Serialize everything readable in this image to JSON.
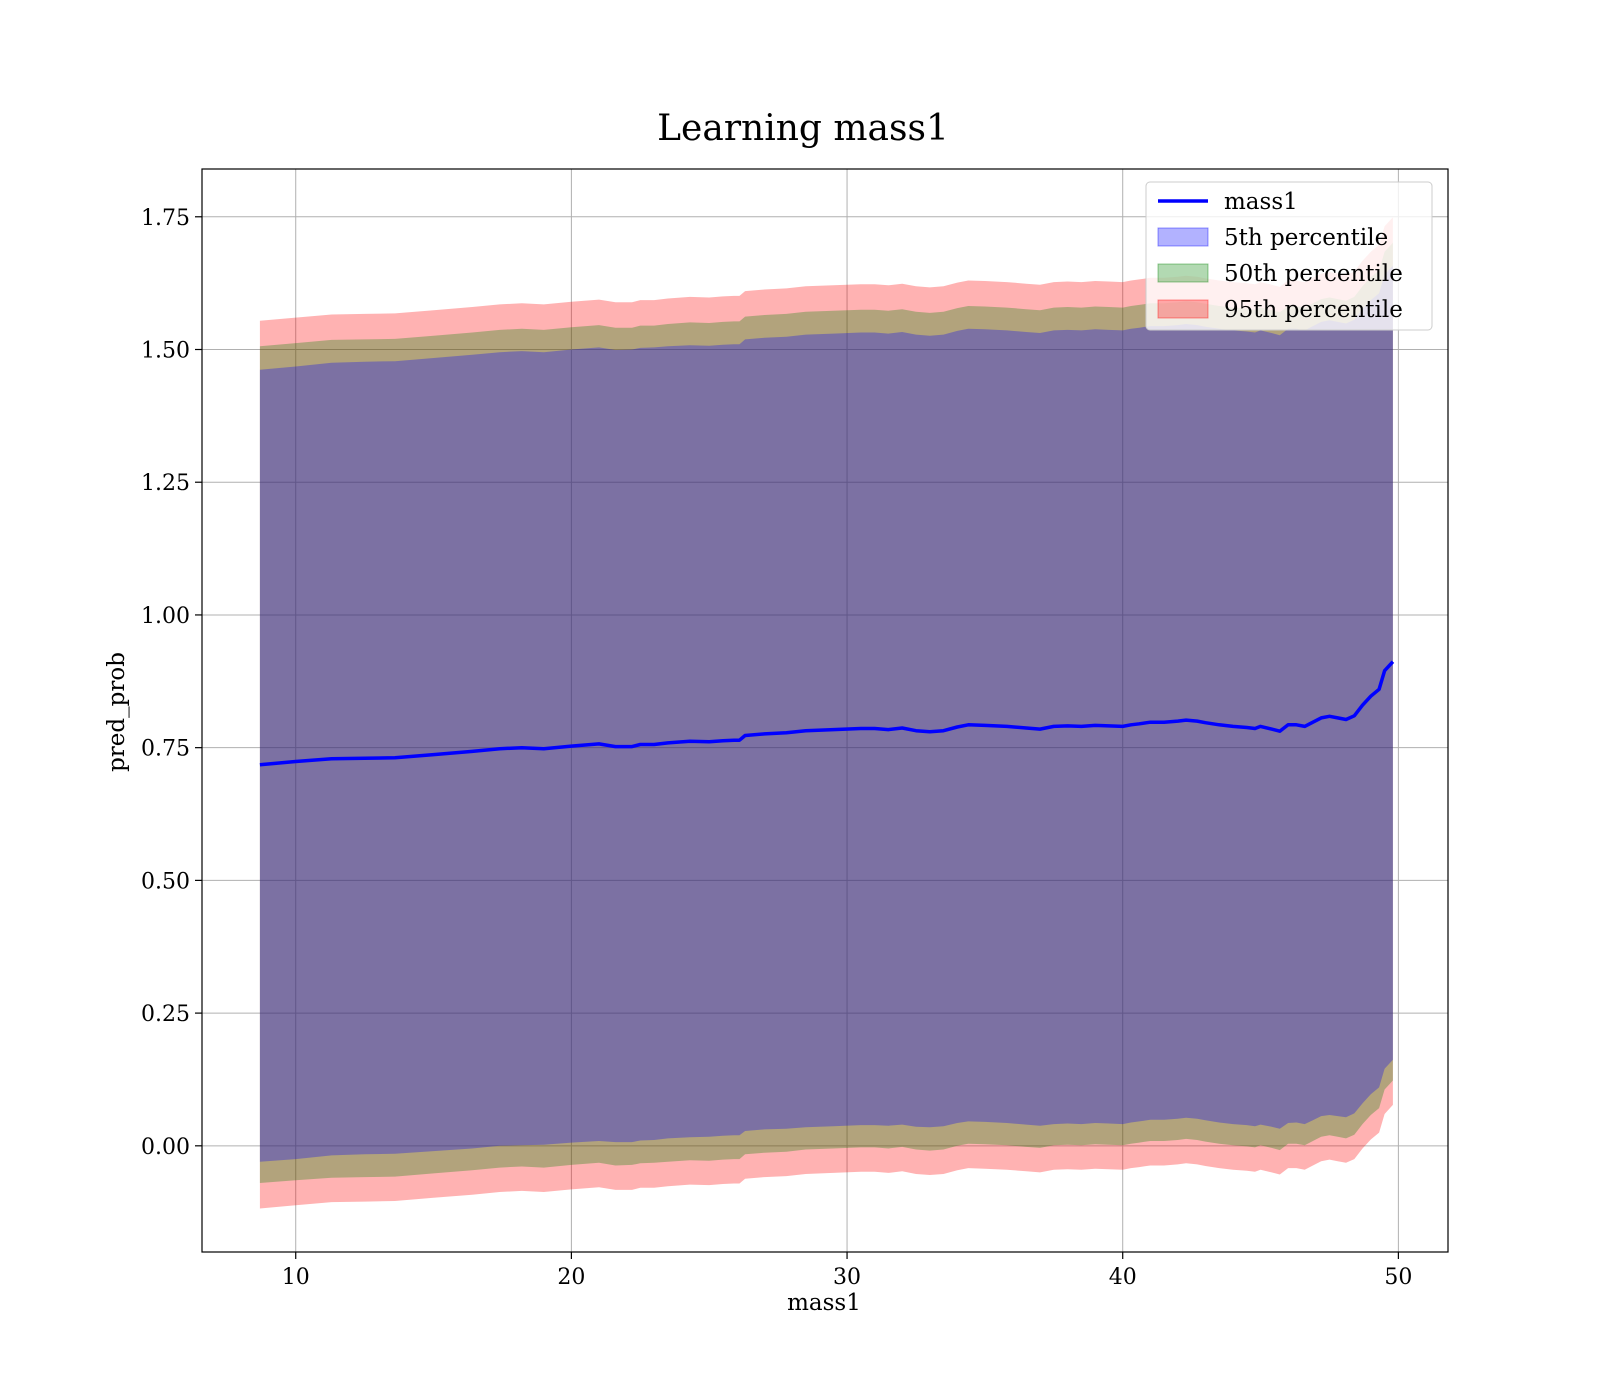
{
  "chart_data": {
    "type": "line",
    "title": "Learning mass1",
    "xlabel": "mass1",
    "ylabel": "pred_prob",
    "xlim": [
      6.6,
      51.8
    ],
    "ylim": [
      -0.2,
      1.84
    ],
    "xticks": [
      10,
      20,
      30,
      40,
      50
    ],
    "xtick_labels": [
      "10",
      "20",
      "30",
      "40",
      "50"
    ],
    "yticks": [
      0.0,
      0.25,
      0.5,
      0.75,
      1.0,
      1.25,
      1.5,
      1.75
    ],
    "ytick_labels": [
      "0.00",
      "0.25",
      "0.50",
      "0.75",
      "1.00",
      "1.25",
      "1.50",
      "1.75"
    ],
    "grid": true,
    "legend_position": "top-right",
    "legend": [
      "mass1",
      "5th percentile",
      "50th percentile",
      "95th percentile"
    ],
    "colors": {
      "line": "#0000ff",
      "band_5th": "#0000ff",
      "band_50th": "#008000",
      "band_95th": "#ff0000"
    },
    "x": [
      8.7,
      10,
      11.3,
      12.5,
      13.6,
      15,
      16.4,
      17.4,
      18.2,
      19,
      20,
      21,
      21.6,
      22.2,
      22.5,
      23,
      23.5,
      24.3,
      25,
      25.5,
      25.9,
      26.1,
      26.3,
      27,
      27.8,
      28.5,
      29.5,
      30.5,
      31,
      31.5,
      32,
      32.5,
      33,
      33.5,
      34,
      34.4,
      35,
      35.8,
      36.5,
      37,
      37.5,
      38,
      38.5,
      39,
      39.5,
      40,
      40.3,
      40.6,
      41,
      41.5,
      42,
      42.3,
      42.7,
      43,
      43.5,
      44,
      44.5,
      44.8,
      45,
      45.4,
      45.7,
      46,
      46.3,
      46.6,
      46.9,
      47.2,
      47.5,
      47.8,
      48.1,
      48.4,
      48.7,
      49,
      49.3,
      49.5,
      49.8
    ],
    "series": [
      {
        "name": "mass1",
        "values": [
          0.718,
          0.724,
          0.729,
          0.73,
          0.731,
          0.737,
          0.743,
          0.748,
          0.75,
          0.748,
          0.753,
          0.757,
          0.752,
          0.752,
          0.756,
          0.756,
          0.759,
          0.762,
          0.761,
          0.763,
          0.764,
          0.764,
          0.773,
          0.776,
          0.778,
          0.782,
          0.784,
          0.786,
          0.786,
          0.784,
          0.787,
          0.782,
          0.78,
          0.782,
          0.789,
          0.793,
          0.792,
          0.79,
          0.787,
          0.785,
          0.79,
          0.791,
          0.79,
          0.792,
          0.791,
          0.79,
          0.793,
          0.795,
          0.798,
          0.798,
          0.8,
          0.802,
          0.8,
          0.797,
          0.793,
          0.79,
          0.788,
          0.786,
          0.79,
          0.785,
          0.781,
          0.793,
          0.793,
          0.79,
          0.798,
          0.806,
          0.809,
          0.806,
          0.803,
          0.81,
          0.83,
          0.847,
          0.86,
          0.895,
          0.912
        ]
      },
      {
        "name": "5th percentile",
        "lower": [
          -0.03,
          -0.025,
          -0.018,
          -0.016,
          -0.015,
          -0.01,
          -0.005,
          0.0,
          0.001,
          0.002,
          0.006,
          0.009,
          0.007,
          0.007,
          0.01,
          0.011,
          0.014,
          0.016,
          0.017,
          0.019,
          0.02,
          0.02,
          0.028,
          0.031,
          0.032,
          0.035,
          0.037,
          0.039,
          0.039,
          0.038,
          0.04,
          0.036,
          0.035,
          0.037,
          0.043,
          0.046,
          0.045,
          0.043,
          0.04,
          0.038,
          0.041,
          0.042,
          0.041,
          0.043,
          0.042,
          0.041,
          0.044,
          0.046,
          0.049,
          0.049,
          0.051,
          0.053,
          0.051,
          0.048,
          0.044,
          0.041,
          0.039,
          0.037,
          0.04,
          0.036,
          0.032,
          0.043,
          0.044,
          0.041,
          0.048,
          0.056,
          0.058,
          0.056,
          0.054,
          0.061,
          0.08,
          0.097,
          0.11,
          0.145,
          0.162
        ],
        "upper": [
          1.462,
          1.468,
          1.475,
          1.477,
          1.478,
          1.484,
          1.49,
          1.495,
          1.497,
          1.495,
          1.5,
          1.504,
          1.499,
          1.5,
          1.503,
          1.504,
          1.506,
          1.508,
          1.507,
          1.509,
          1.51,
          1.51,
          1.519,
          1.522,
          1.524,
          1.528,
          1.53,
          1.532,
          1.532,
          1.53,
          1.533,
          1.528,
          1.526,
          1.528,
          1.535,
          1.539,
          1.538,
          1.536,
          1.533,
          1.531,
          1.536,
          1.537,
          1.536,
          1.538,
          1.537,
          1.536,
          1.539,
          1.541,
          1.544,
          1.544,
          1.546,
          1.548,
          1.546,
          1.543,
          1.539,
          1.536,
          1.534,
          1.532,
          1.536,
          1.531,
          1.527,
          1.539,
          1.539,
          1.536,
          1.544,
          1.552,
          1.555,
          1.552,
          1.549,
          1.556,
          1.576,
          1.593,
          1.606,
          1.641,
          1.658
        ]
      },
      {
        "name": "50th percentile",
        "lower": [
          -0.07,
          -0.065,
          -0.06,
          -0.059,
          -0.058,
          -0.052,
          -0.046,
          -0.041,
          -0.039,
          -0.041,
          -0.036,
          -0.032,
          -0.037,
          -0.036,
          -0.033,
          -0.032,
          -0.03,
          -0.027,
          -0.028,
          -0.026,
          -0.025,
          -0.025,
          -0.016,
          -0.013,
          -0.011,
          -0.007,
          -0.005,
          -0.003,
          -0.003,
          -0.005,
          -0.002,
          -0.007,
          -0.009,
          -0.007,
          0.0,
          0.004,
          0.003,
          0.001,
          -0.002,
          -0.004,
          0.001,
          0.002,
          0.001,
          0.003,
          0.002,
          0.001,
          0.004,
          0.006,
          0.009,
          0.009,
          0.011,
          0.013,
          0.011,
          0.008,
          0.004,
          0.001,
          -0.001,
          -0.003,
          0.001,
          -0.004,
          -0.008,
          0.004,
          0.004,
          0.001,
          0.009,
          0.017,
          0.02,
          0.017,
          0.014,
          0.021,
          0.041,
          0.058,
          0.071,
          0.106,
          0.123
        ],
        "upper": [
          1.506,
          1.512,
          1.518,
          1.519,
          1.52,
          1.526,
          1.532,
          1.537,
          1.539,
          1.537,
          1.542,
          1.546,
          1.541,
          1.541,
          1.545,
          1.545,
          1.548,
          1.551,
          1.55,
          1.552,
          1.553,
          1.553,
          1.562,
          1.565,
          1.567,
          1.571,
          1.573,
          1.575,
          1.575,
          1.573,
          1.576,
          1.571,
          1.569,
          1.571,
          1.578,
          1.582,
          1.581,
          1.579,
          1.576,
          1.574,
          1.579,
          1.58,
          1.579,
          1.581,
          1.58,
          1.579,
          1.582,
          1.584,
          1.587,
          1.587,
          1.589,
          1.591,
          1.589,
          1.586,
          1.582,
          1.579,
          1.577,
          1.575,
          1.579,
          1.574,
          1.57,
          1.582,
          1.582,
          1.579,
          1.587,
          1.595,
          1.598,
          1.595,
          1.592,
          1.599,
          1.619,
          1.636,
          1.649,
          1.684,
          1.701
        ]
      },
      {
        "name": "95th percentile",
        "lower": [
          -0.118,
          -0.112,
          -0.106,
          -0.105,
          -0.104,
          -0.098,
          -0.092,
          -0.087,
          -0.085,
          -0.087,
          -0.082,
          -0.078,
          -0.083,
          -0.083,
          -0.079,
          -0.079,
          -0.076,
          -0.073,
          -0.074,
          -0.072,
          -0.071,
          -0.071,
          -0.062,
          -0.059,
          -0.057,
          -0.053,
          -0.051,
          -0.049,
          -0.049,
          -0.051,
          -0.048,
          -0.053,
          -0.055,
          -0.053,
          -0.046,
          -0.042,
          -0.043,
          -0.045,
          -0.048,
          -0.05,
          -0.045,
          -0.044,
          -0.045,
          -0.043,
          -0.044,
          -0.045,
          -0.042,
          -0.04,
          -0.037,
          -0.037,
          -0.035,
          -0.033,
          -0.035,
          -0.038,
          -0.042,
          -0.045,
          -0.047,
          -0.049,
          -0.045,
          -0.05,
          -0.054,
          -0.042,
          -0.042,
          -0.045,
          -0.037,
          -0.029,
          -0.026,
          -0.029,
          -0.032,
          -0.025,
          -0.005,
          0.012,
          0.025,
          0.06,
          0.077
        ],
        "upper": [
          1.554,
          1.56,
          1.566,
          1.567,
          1.568,
          1.574,
          1.58,
          1.585,
          1.587,
          1.585,
          1.59,
          1.594,
          1.589,
          1.589,
          1.593,
          1.593,
          1.596,
          1.599,
          1.598,
          1.6,
          1.601,
          1.601,
          1.61,
          1.613,
          1.615,
          1.619,
          1.621,
          1.623,
          1.623,
          1.621,
          1.624,
          1.619,
          1.617,
          1.619,
          1.626,
          1.63,
          1.629,
          1.627,
          1.624,
          1.622,
          1.627,
          1.628,
          1.627,
          1.629,
          1.628,
          1.627,
          1.63,
          1.632,
          1.635,
          1.635,
          1.637,
          1.639,
          1.637,
          1.634,
          1.63,
          1.627,
          1.625,
          1.623,
          1.627,
          1.622,
          1.618,
          1.63,
          1.63,
          1.627,
          1.635,
          1.643,
          1.646,
          1.643,
          1.64,
          1.647,
          1.667,
          1.684,
          1.697,
          1.732,
          1.749
        ]
      }
    ]
  }
}
